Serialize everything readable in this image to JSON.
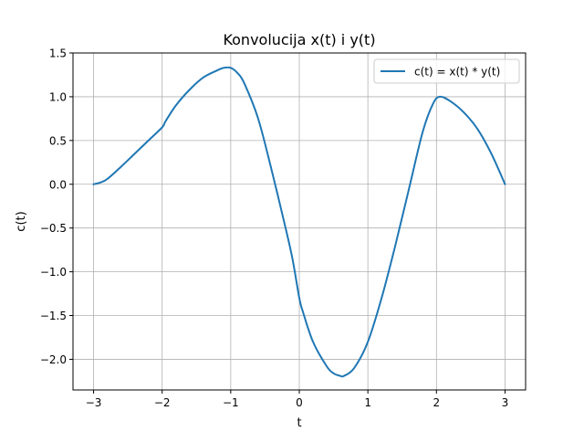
{
  "chart_data": {
    "type": "line",
    "title": "Konvolucija x(t) i y(t)",
    "xlabel": "t",
    "ylabel": "c(t)",
    "xlim": [
      -3.3,
      3.3
    ],
    "ylim": [
      -2.35,
      1.5
    ],
    "grid": true,
    "legend_placement": "top-right",
    "x_ticks": [
      -3,
      -2,
      -1,
      0,
      1,
      2,
      3
    ],
    "x_tick_labels": [
      "−3",
      "−2",
      "−1",
      "0",
      "1",
      "2",
      "3"
    ],
    "y_ticks": [
      -2.0,
      -1.5,
      -1.0,
      -0.5,
      0.0,
      0.5,
      1.0,
      1.5
    ],
    "y_tick_labels": [
      "−2.0",
      "−1.5",
      "−1.0",
      "−0.5",
      "0.0",
      "0.5",
      "1.0",
      "1.5"
    ],
    "series": [
      {
        "name": "c(t) = x(t) * y(t)",
        "color": "#1f77b4",
        "x": [
          -3.0,
          -2.9,
          -2.8,
          -2.6,
          -2.4,
          -2.2,
          -2.0,
          -1.95,
          -1.8,
          -1.6,
          -1.4,
          -1.2,
          -1.1,
          -1.0,
          -0.9,
          -0.8,
          -0.6,
          -0.4,
          -0.2,
          -0.1,
          0.0,
          0.05,
          0.2,
          0.4,
          0.5,
          0.6,
          0.65,
          0.8,
          1.0,
          1.2,
          1.4,
          1.6,
          1.8,
          1.95,
          2.05,
          2.2,
          2.4,
          2.6,
          2.8,
          3.0
        ],
        "y": [
          0.0,
          0.02,
          0.06,
          0.2,
          0.35,
          0.5,
          0.65,
          0.72,
          0.9,
          1.08,
          1.22,
          1.3,
          1.33,
          1.33,
          1.27,
          1.15,
          0.75,
          0.15,
          -0.5,
          -0.85,
          -1.3,
          -1.45,
          -1.8,
          -2.08,
          -2.16,
          -2.19,
          -2.19,
          -2.1,
          -1.8,
          -1.3,
          -0.7,
          -0.05,
          0.6,
          0.92,
          1.0,
          0.95,
          0.82,
          0.63,
          0.35,
          0.0
        ]
      }
    ]
  }
}
